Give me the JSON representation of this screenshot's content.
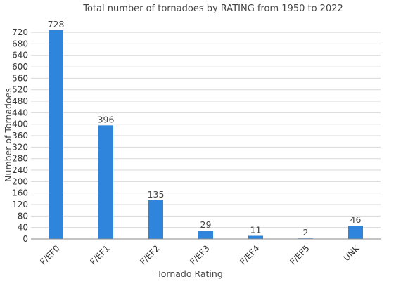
{
  "chart_data": {
    "type": "bar",
    "title": "Total number of tornadoes by RATING from 1950 to 2022",
    "xlabel": "Tornado Rating",
    "ylabel": "Number of Tornadoes",
    "categories": [
      "F/EF0",
      "F/EF1",
      "F/EF2",
      "F/EF3",
      "F/EF4",
      "F/EF5",
      "UNK"
    ],
    "values": [
      728,
      396,
      135,
      29,
      11,
      2,
      46
    ],
    "ylim": [
      0,
      730
    ],
    "yticks": [
      0,
      40,
      80,
      120,
      160,
      200,
      240,
      280,
      320,
      360,
      400,
      440,
      480,
      520,
      560,
      600,
      640,
      680,
      720
    ],
    "grid": true,
    "bar_color": "#2f84db",
    "data_labels": true
  }
}
